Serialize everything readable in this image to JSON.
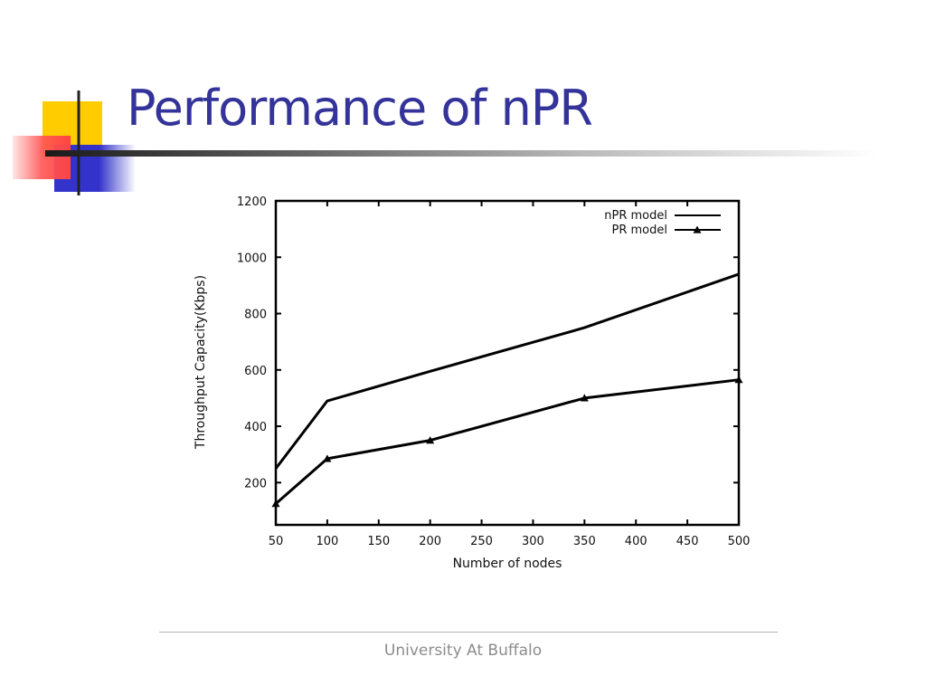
{
  "slide": {
    "title": "Performance of nPR",
    "footer": "University At Buffalo"
  },
  "colors": {
    "title": "#333399",
    "accent_yellow": "#ffcc00",
    "accent_blue": "#3333cc",
    "accent_red": "#ff5555",
    "footer_text": "#8c8c8c",
    "plot_line": "#000000"
  },
  "chart_data": {
    "type": "line",
    "title": "",
    "xlabel": "Number of nodes",
    "ylabel": "Throughput Capacity(Kbps)",
    "xlim": [
      50,
      500
    ],
    "ylim": [
      50,
      1200
    ],
    "xticks": [
      50,
      100,
      150,
      200,
      250,
      300,
      350,
      400,
      450,
      500
    ],
    "yticks": [
      200,
      400,
      600,
      800,
      1000,
      1200
    ],
    "grid": false,
    "legend_position": "top-right",
    "series": [
      {
        "name": "nPR model",
        "marker": "none",
        "x": [
          50,
          100,
          200,
          350,
          500
        ],
        "y": [
          250,
          490,
          595,
          750,
          940
        ]
      },
      {
        "name": "PR model",
        "marker": "triangle",
        "x": [
          50,
          100,
          200,
          350,
          500
        ],
        "y": [
          125,
          285,
          350,
          500,
          565
        ]
      }
    ]
  }
}
